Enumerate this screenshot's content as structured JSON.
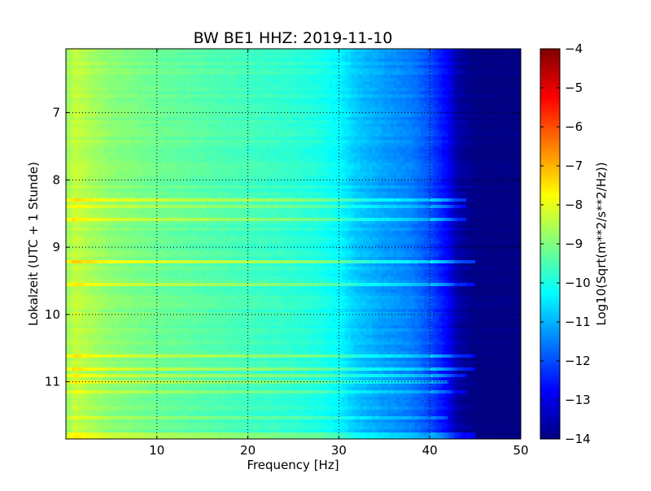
{
  "chart_data": {
    "type": "heatmap",
    "title": "BW BE1 HHZ: 2019-11-10",
    "xlabel": "Frequency [Hz]",
    "ylabel": "Lokalzeit (UTC + 1 Stunde)",
    "xlim": [
      0,
      50
    ],
    "ylim": [
      11.85,
      6.05
    ],
    "y_inverted": true,
    "xticks": [
      10,
      20,
      30,
      40,
      50
    ],
    "yticks": [
      7,
      8,
      9,
      10,
      11
    ],
    "grid": true,
    "colormap": "jet",
    "colorbar": {
      "label": "Log10(Sqrt(m**2/s**2/Hz))",
      "range": [
        -14,
        -4
      ],
      "ticks": [
        -4,
        -5,
        -6,
        -7,
        -8,
        -9,
        -10,
        -11,
        -12,
        -13,
        -14
      ]
    },
    "frequency_profile": {
      "frequency_hz": [
        0,
        1,
        2,
        5,
        10,
        15,
        20,
        25,
        28,
        30,
        32,
        35,
        38,
        40,
        42,
        43,
        45,
        50
      ],
      "level": [
        -8.8,
        -8.3,
        -8.5,
        -8.9,
        -9.2,
        -9.4,
        -9.6,
        -9.8,
        -10.0,
        -10.3,
        -10.8,
        -11.2,
        -11.5,
        -12.0,
        -12.8,
        -13.6,
        -14.0,
        -14.0
      ]
    },
    "noise_bands": [
      {
        "time_h": 8.3,
        "level_offset": 0.9,
        "max_freq_hz": 44
      },
      {
        "time_h": 8.4,
        "level_offset": 0.7,
        "max_freq_hz": 44
      },
      {
        "time_h": 8.6,
        "level_offset": 0.9,
        "max_freq_hz": 44
      },
      {
        "time_h": 9.2,
        "level_offset": 1.0,
        "max_freq_hz": 45
      },
      {
        "time_h": 9.55,
        "level_offset": 0.8,
        "max_freq_hz": 45
      },
      {
        "time_h": 10.6,
        "level_offset": 0.8,
        "max_freq_hz": 45
      },
      {
        "time_h": 10.8,
        "level_offset": 0.9,
        "max_freq_hz": 45
      },
      {
        "time_h": 10.9,
        "level_offset": 0.7,
        "max_freq_hz": 44
      },
      {
        "time_h": 11.0,
        "level_offset": 0.6,
        "max_freq_hz": 42
      },
      {
        "time_h": 11.15,
        "level_offset": 0.6,
        "max_freq_hz": 44
      },
      {
        "time_h": 11.55,
        "level_offset": 0.5,
        "max_freq_hz": 42
      },
      {
        "time_h": 11.8,
        "level_offset": 0.7,
        "max_freq_hz": 45
      }
    ]
  }
}
